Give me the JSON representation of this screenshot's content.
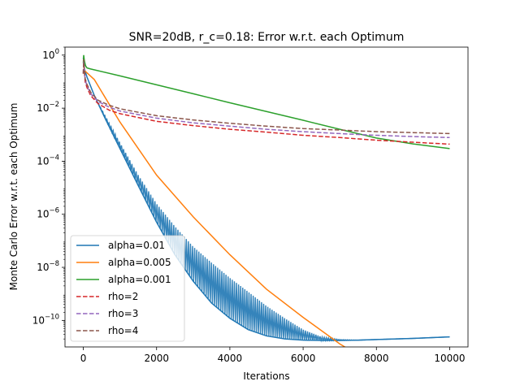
{
  "chart_data": {
    "type": "line",
    "title": "SNR=20dB, r_c=0.18: Error w.r.t. each Optimum",
    "xlabel": "Iterations",
    "ylabel": "Monte Carlo Error w.r.t. each Optimum",
    "xlim": [
      -500,
      10500
    ],
    "ylim": [
      1e-11,
      2
    ],
    "yscale": "log",
    "xticks": [
      0,
      2000,
      4000,
      6000,
      8000,
      10000
    ],
    "xtick_labels": [
      "0",
      "2000",
      "4000",
      "6000",
      "8000",
      "10000"
    ],
    "yticks": [
      1e-10,
      1e-08,
      1e-06,
      0.0001,
      0.01,
      1
    ],
    "ytick_labels": [
      {
        "base": "10",
        "exp": "−10"
      },
      {
        "base": "10",
        "exp": "−8"
      },
      {
        "base": "10",
        "exp": "−6"
      },
      {
        "base": "10",
        "exp": "−4"
      },
      {
        "base": "10",
        "exp": "−2"
      },
      {
        "base": "10",
        "exp": "0"
      }
    ],
    "grid": false,
    "legend_position": "lower-left",
    "series": [
      {
        "name": "alpha=0.01",
        "color": "#1f77b4",
        "style": "solid",
        "x": [
          0,
          30,
          100,
          300,
          600,
          1000,
          1500,
          2000,
          2500,
          3000,
          3500,
          4000,
          4500,
          5000,
          5500,
          6000,
          6500,
          7000,
          7500,
          8000,
          9000,
          10000
        ],
        "y": [
          0.8,
          0.3,
          0.15,
          0.03,
          0.004,
          0.0003,
          1.2e-05,
          5e-07,
          3e-08,
          3e-09,
          4.5e-10,
          1.2e-10,
          4.5e-11,
          2.6e-11,
          2e-11,
          1.8e-11,
          1.75e-11,
          1.75e-11,
          1.8e-11,
          1.9e-11,
          2.1e-11,
          2.4e-11
        ],
        "band_high": [
          0.8,
          0.3,
          0.15,
          0.03,
          0.005,
          0.0005,
          3e-05,
          2.5e-06,
          3.5e-07,
          6e-08,
          1.5e-08,
          4e-09,
          1.2e-09,
          3.5e-10,
          1.2e-10,
          4.5e-11,
          2.4e-11,
          1.9e-11,
          1.8e-11,
          1.9e-11,
          2.1e-11,
          2.4e-11
        ],
        "band_low": [
          0.8,
          0.3,
          0.15,
          0.03,
          0.004,
          0.0003,
          1.2e-05,
          5e-07,
          3e-08,
          3e-09,
          4.5e-10,
          1.2e-10,
          4.5e-11,
          2.6e-11,
          2e-11,
          1.8e-11,
          1.75e-11,
          1.75e-11,
          1.8e-11,
          1.9e-11,
          2.1e-11,
          2.4e-11
        ]
      },
      {
        "name": "alpha=0.005",
        "color": "#ff7f0e",
        "style": "solid",
        "x": [
          0,
          50,
          300,
          1000,
          2000,
          3000,
          4000,
          5000,
          6000,
          7000,
          7500,
          8000,
          8500,
          9000,
          10000
        ],
        "y": [
          0.3,
          0.25,
          0.12,
          0.003,
          3e-05,
          8e-07,
          3e-08,
          1.5e-09,
          1.3e-10,
          1.3e-11,
          5e-12,
          3.2e-12,
          3.4e-12,
          3.9e-12,
          5e-12
        ]
      },
      {
        "name": "alpha=0.001",
        "color": "#2ca02c",
        "style": "solid",
        "x": [
          0,
          10,
          30,
          60,
          100,
          200,
          1000,
          2000,
          3000,
          4000,
          5000,
          6000,
          7000,
          8000,
          9000,
          10000
        ],
        "y": [
          0.5,
          1.0,
          0.6,
          0.4,
          0.33,
          0.3,
          0.165,
          0.076,
          0.035,
          0.016,
          0.0075,
          0.0035,
          0.0016,
          0.00075,
          0.00045,
          0.0003
        ]
      },
      {
        "name": "rho=2",
        "color": "#d62728",
        "style": "dashed",
        "x": [
          0,
          10,
          50,
          100,
          200,
          400,
          700,
          1000,
          2000,
          3000,
          4000,
          5000,
          6000,
          7000,
          8000,
          9000,
          10000
        ],
        "y": [
          0.2,
          0.5,
          0.1,
          0.06,
          0.03,
          0.015,
          0.0085,
          0.0062,
          0.0032,
          0.0022,
          0.0016,
          0.00125,
          0.00095,
          0.00078,
          0.00062,
          0.00052,
          0.00044
        ]
      },
      {
        "name": "rho=3",
        "color": "#9467bd",
        "style": "dashed",
        "x": [
          0,
          10,
          50,
          100,
          200,
          400,
          700,
          1000,
          2000,
          3000,
          4000,
          5000,
          6000,
          7000,
          8000,
          9000,
          10000
        ],
        "y": [
          0.2,
          0.6,
          0.12,
          0.07,
          0.035,
          0.018,
          0.011,
          0.0078,
          0.0042,
          0.0028,
          0.0021,
          0.0016,
          0.0013,
          0.0011,
          0.00095,
          0.00085,
          0.00078
        ]
      },
      {
        "name": "rho=4",
        "color": "#8c564b",
        "style": "dashed",
        "x": [
          0,
          10,
          50,
          100,
          200,
          400,
          700,
          1000,
          2000,
          3000,
          4000,
          5000,
          6000,
          7000,
          8000,
          9000,
          10000
        ],
        "y": [
          0.2,
          0.7,
          0.13,
          0.08,
          0.04,
          0.02,
          0.013,
          0.0095,
          0.0052,
          0.0036,
          0.0027,
          0.0021,
          0.0017,
          0.0015,
          0.0013,
          0.0012,
          0.0011
        ]
      }
    ]
  }
}
